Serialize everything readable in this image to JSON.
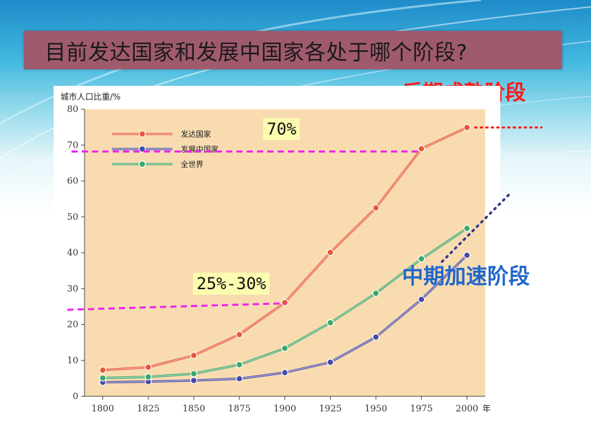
{
  "slide": {
    "title": "目前发达国家和发展中国家各处于哪个阶段?",
    "label_late": "后期成熟阶段",
    "label_mid": "中期加速阶段",
    "annotation_70": "70%",
    "annotation_25_30": "25%-30%"
  },
  "colors": {
    "developed": "#e8553c",
    "developing": "#4a49a8",
    "world": "#3aa66a",
    "plot_bg": "#f8dcb0",
    "guide_dash": "#ee22ee",
    "late_label": "#ff1a1a",
    "mid_label": "#2266cc"
  },
  "chart_data": {
    "type": "line",
    "ylabel": "城市人口比重/%",
    "xlabel": "年",
    "x": [
      1800,
      1825,
      1850,
      1875,
      1900,
      1925,
      1950,
      1975,
      2000
    ],
    "ylim": [
      0,
      80
    ],
    "yticks": [
      0,
      10,
      20,
      30,
      40,
      50,
      60,
      70,
      80
    ],
    "legend_position": "top-left",
    "grid": false,
    "series": [
      {
        "name": "发达国家",
        "color": "#e8553c",
        "values": [
          7.3,
          8.1,
          11.4,
          17.2,
          26.1,
          40.1,
          52.5,
          69.0,
          74.9
        ]
      },
      {
        "name": "发展中国家",
        "color": "#4a49a8",
        "values": [
          3.9,
          4.1,
          4.4,
          4.9,
          6.6,
          9.5,
          16.5,
          27.0,
          39.3
        ]
      },
      {
        "name": "全世界",
        "color": "#3aa66a",
        "values": [
          5.1,
          5.4,
          6.3,
          8.8,
          13.4,
          20.5,
          28.7,
          38.3,
          46.8
        ]
      }
    ]
  }
}
